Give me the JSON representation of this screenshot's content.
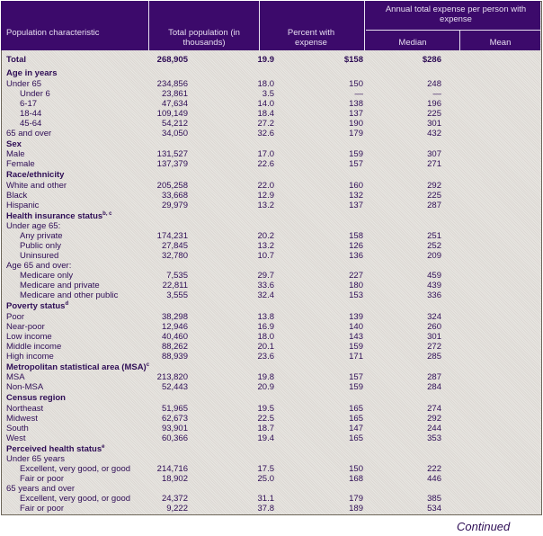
{
  "header": {
    "characteristic": "Population characteristic",
    "total_population": "Total population (in thousands)",
    "percent_with_expense": "Percent with expense",
    "group": "Annual total expense per person with expense",
    "median": "Median",
    "mean": "Mean"
  },
  "rows": [
    {
      "type": "total",
      "label": "Total",
      "pop": "268,905",
      "pct": "19.9",
      "median": "$158",
      "mean": "$286"
    },
    {
      "type": "sec",
      "label": "Age in years"
    },
    {
      "type": "row",
      "label": "Under 65",
      "pop": "234,856",
      "pct": "18.0",
      "median": "150",
      "mean": "248"
    },
    {
      "type": "row",
      "indent": 1,
      "label": "Under 6",
      "pop": "23,861",
      "pct": "3.5",
      "median": "—",
      "mean": "—"
    },
    {
      "type": "row",
      "indent": 1,
      "label": "6-17",
      "pop": "47,634",
      "pct": "14.0",
      "median": "138",
      "mean": "196"
    },
    {
      "type": "row",
      "indent": 1,
      "label": "18-44",
      "pop": "109,149",
      "pct": "18.4",
      "median": "137",
      "mean": "225"
    },
    {
      "type": "row",
      "indent": 1,
      "label": "45-64",
      "pop": "54,212",
      "pct": "27.2",
      "median": "190",
      "mean": "301"
    },
    {
      "type": "row",
      "label": "65 and over",
      "pop": "34,050",
      "pct": "32.6",
      "median": "179",
      "mean": "432"
    },
    {
      "type": "sec",
      "label": "Sex"
    },
    {
      "type": "row",
      "label": "Male",
      "pop": "131,527",
      "pct": "17.0",
      "median": "159",
      "mean": "307"
    },
    {
      "type": "row",
      "label": "Female",
      "pop": "137,379",
      "pct": "22.6",
      "median": "157",
      "mean": "271"
    },
    {
      "type": "sec",
      "label": "Race/ethnicity"
    },
    {
      "type": "row",
      "label": "White and other",
      "pop": "205,258",
      "pct": "22.0",
      "median": "160",
      "mean": "292"
    },
    {
      "type": "row",
      "label": "Black",
      "pop": "33,668",
      "pct": "12.9",
      "median": "132",
      "mean": "225"
    },
    {
      "type": "row",
      "label": "Hispanic",
      "pop": "29,979",
      "pct": "13.2",
      "median": "137",
      "mean": "287"
    },
    {
      "type": "sec",
      "label": "Health insurance status",
      "sup": "b, c"
    },
    {
      "type": "row",
      "label": "Under age 65:"
    },
    {
      "type": "row",
      "indent": 1,
      "label": "Any private",
      "pop": "174,231",
      "pct": "20.2",
      "median": "158",
      "mean": "251"
    },
    {
      "type": "row",
      "indent": 1,
      "label": "Public only",
      "pop": "27,845",
      "pct": "13.2",
      "median": "126",
      "mean": "252"
    },
    {
      "type": "row",
      "indent": 1,
      "label": "Uninsured",
      "pop": "32,780",
      "pct": "10.7",
      "median": "136",
      "mean": "209"
    },
    {
      "type": "row",
      "label": "Age 65 and over:"
    },
    {
      "type": "row",
      "indent": 1,
      "label": "Medicare only",
      "pop": "7,535",
      "pct": "29.7",
      "median": "227",
      "mean": "459"
    },
    {
      "type": "row",
      "indent": 1,
      "label": "Medicare and private",
      "pop": "22,811",
      "pct": "33.6",
      "median": "180",
      "mean": "439"
    },
    {
      "type": "row",
      "indent": 1,
      "label": "Medicare and other public",
      "pop": "3,555",
      "pct": "32.4",
      "median": "153",
      "mean": "336"
    },
    {
      "type": "sec",
      "label": "Poverty status",
      "sup": "d"
    },
    {
      "type": "row",
      "label": "Poor",
      "pop": "38,298",
      "pct": "13.8",
      "median": "139",
      "mean": "324"
    },
    {
      "type": "row",
      "label": "Near-poor",
      "pop": "12,946",
      "pct": "16.9",
      "median": "140",
      "mean": "260"
    },
    {
      "type": "row",
      "label": "Low income",
      "pop": "40,460",
      "pct": "18.0",
      "median": "143",
      "mean": "301"
    },
    {
      "type": "row",
      "label": "Middle income",
      "pop": "88,262",
      "pct": "20.1",
      "median": "159",
      "mean": "272"
    },
    {
      "type": "row",
      "label": "High income",
      "pop": "88,939",
      "pct": "23.6",
      "median": "171",
      "mean": "285"
    },
    {
      "type": "sec",
      "label": "Metropolitan statistical area (MSA)",
      "sup": "c"
    },
    {
      "type": "row",
      "label": "MSA",
      "pop": "213,820",
      "pct": "19.8",
      "median": "157",
      "mean": "287"
    },
    {
      "type": "row",
      "label": "Non-MSA",
      "pop": "52,443",
      "pct": "20.9",
      "median": "159",
      "mean": "284"
    },
    {
      "type": "sec",
      "label": "Census region"
    },
    {
      "type": "row",
      "label": "Northeast",
      "pop": "51,965",
      "pct": "19.5",
      "median": "165",
      "mean": "274"
    },
    {
      "type": "row",
      "label": "Midwest",
      "pop": "62,673",
      "pct": "22.5",
      "median": "165",
      "mean": "292"
    },
    {
      "type": "row",
      "label": "South",
      "pop": "93,901",
      "pct": "18.7",
      "median": "147",
      "mean": "244"
    },
    {
      "type": "row",
      "label": "West",
      "pop": "60,366",
      "pct": "19.4",
      "median": "165",
      "mean": "353"
    },
    {
      "type": "sec",
      "label": "Perceived health status",
      "sup": "e"
    },
    {
      "type": "row",
      "label": "Under 65 years"
    },
    {
      "type": "row",
      "indent": 1,
      "label": "Excellent, very good, or good",
      "pop": "214,716",
      "pct": "17.5",
      "median": "150",
      "mean": "222"
    },
    {
      "type": "row",
      "indent": 1,
      "label": "Fair or poor",
      "pop": "18,902",
      "pct": "25.0",
      "median": "168",
      "mean": "446"
    },
    {
      "type": "row",
      "label": "65 years and over"
    },
    {
      "type": "row",
      "indent": 1,
      "label": "Excellent, very good, or good",
      "pop": "24,372",
      "pct": "31.1",
      "median": "179",
      "mean": "385"
    },
    {
      "type": "row",
      "indent": 1,
      "label": "Fair or poor",
      "pop": "9,222",
      "pct": "37.8",
      "median": "189",
      "mean": "534"
    }
  ],
  "footer": {
    "continued": "Continued"
  }
}
